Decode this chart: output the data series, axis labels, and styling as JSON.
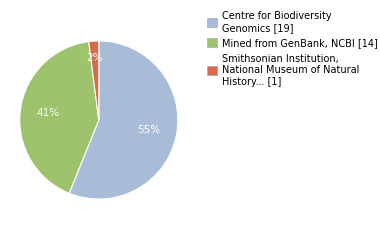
{
  "labels": [
    "Centre for Biodiversity\nGenomics [19]",
    "Mined from GenBank, NCBI [14]",
    "Smithsonian Institution,\nNational Museum of Natural\nHistory... [1]"
  ],
  "values": [
    55,
    41,
    2
  ],
  "colors": [
    "#a8bcd8",
    "#9dc46c",
    "#d9694a"
  ],
  "autopct_labels": [
    "55%",
    "41%",
    "2%"
  ],
  "startangle": 90,
  "background_color": "#ffffff",
  "label_fontsize": 7.5,
  "legend_fontsize": 7.0
}
